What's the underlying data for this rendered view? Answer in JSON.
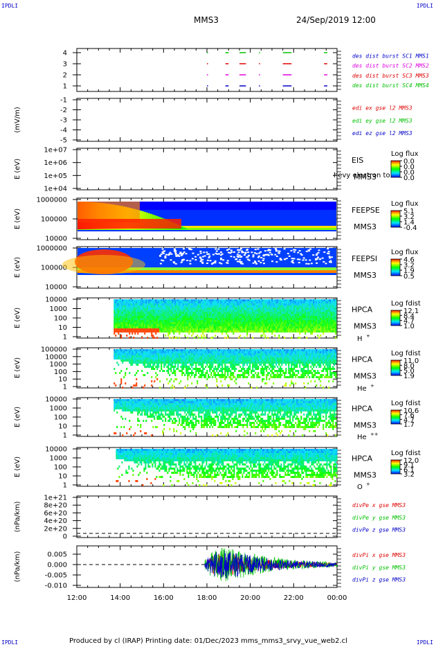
{
  "corners": {
    "tl": "IPDLI",
    "tr": "IPDLI",
    "bl": "IPDLI",
    "br": "IPDLI"
  },
  "header": {
    "mission": "MMS3",
    "datetime": "24/Sep/2019 12:00"
  },
  "footer": {
    "text": "Produced by cl (IRAP)   Printing date: 01/Dec/2023   mms_mms3_srvy_vue_web2.cl"
  },
  "time_axis": {
    "ticks": [
      "12:00",
      "14:00",
      "16:00",
      "18:00",
      "20:00",
      "22:00",
      "00:00"
    ]
  },
  "colors": {
    "red": "#e00000",
    "magenta": "#e000e0",
    "green": "#00c000",
    "blue": "#0000c8"
  },
  "chart_data": [
    {
      "type": "scatter",
      "panel": "burst",
      "ylabel": "",
      "yticks": [
        "4",
        "3",
        "2",
        "1"
      ],
      "legend": [
        {
          "label": "des dist burst SC1 MMS1",
          "color": "#0000c8"
        },
        {
          "label": "des dist burst SC2 MMS2",
          "color": "#e000e0"
        },
        {
          "label": "des dist burst SC3 MMS3",
          "color": "#e00000"
        },
        {
          "label": "des dist burst SC4 MMS4",
          "color": "#00c000"
        }
      ],
      "intervals_hours": [
        {
          "level": 4,
          "color": "#00c000",
          "ranges": [
            [
              18,
              18.05
            ],
            [
              18.85,
              19.0
            ],
            [
              19.5,
              19.8
            ],
            [
              20.4,
              20.45
            ],
            [
              21.5,
              21.9
            ],
            [
              23.4,
              23.55
            ]
          ]
        },
        {
          "level": 3,
          "color": "#e00000",
          "ranges": [
            [
              18,
              18.05
            ],
            [
              18.85,
              19.0
            ],
            [
              19.5,
              19.8
            ],
            [
              20.4,
              20.45
            ],
            [
              21.5,
              21.9
            ],
            [
              23.4,
              23.55
            ]
          ]
        },
        {
          "level": 2,
          "color": "#e000e0",
          "ranges": [
            [
              18,
              18.05
            ],
            [
              18.85,
              19.0
            ],
            [
              19.5,
              19.8
            ],
            [
              20.4,
              20.45
            ],
            [
              21.5,
              21.9
            ],
            [
              23.4,
              23.55
            ]
          ]
        },
        {
          "level": 1,
          "color": "#0000c8",
          "ranges": [
            [
              18,
              18.05
            ],
            [
              18.85,
              19.0
            ],
            [
              19.5,
              19.8
            ],
            [
              20.4,
              20.45
            ],
            [
              21.5,
              21.9
            ],
            [
              23.4,
              23.55
            ]
          ]
        }
      ]
    },
    {
      "type": "line",
      "panel": "edi",
      "ylabel": "(mV/m)",
      "yticks": [
        "-1",
        "-2",
        "-3",
        "-4",
        "-5"
      ],
      "legend": [
        {
          "label": "edi ex gse l2 MMS3",
          "color": "#e00000"
        },
        {
          "label": "edi ey gse l2 MMS3",
          "color": "#00c000"
        },
        {
          "label": "edi ez gse l2 MMS3",
          "color": "#0000c8"
        }
      ]
    },
    {
      "type": "heatmap",
      "panel": "eis",
      "ylabel": "E (eV)",
      "yticks": [
        "1e+07",
        "1e+06",
        "1e+05",
        "1e+04"
      ],
      "labels": [
        "EIS",
        "MMS3"
      ],
      "overlay": "hevy electron to",
      "colorbar": {
        "title": "Log flux",
        "ticks": [
          "0.0",
          "0.0",
          "0.0",
          "0.0"
        ]
      }
    },
    {
      "type": "heatmap",
      "panel": "feepse",
      "ylabel": "E (eV)",
      "yticks": [
        "1000000",
        "100000",
        "10000"
      ],
      "labels": [
        "FEEPSE",
        "MMS3"
      ],
      "colorbar": {
        "title": "Log flux",
        "ticks": [
          "5.1",
          "3.2",
          "1.4",
          "-0.4"
        ]
      }
    },
    {
      "type": "heatmap",
      "panel": "feepsi",
      "ylabel": "E (eV)",
      "yticks": [
        "1000000",
        "100000",
        "10000"
      ],
      "labels": [
        "FEEPSI",
        "MMS3"
      ],
      "colorbar": {
        "title": "Log flux",
        "ticks": [
          "4.6",
          "3.2",
          "1.9",
          "0.5"
        ]
      }
    },
    {
      "type": "heatmap",
      "panel": "hpca_h",
      "ylabel": "E (eV)",
      "yticks": [
        "10000",
        "1000",
        "100",
        "10",
        "1"
      ],
      "labels": [
        "HPCA",
        "MMS3"
      ],
      "species": "H",
      "charge": "+",
      "colorbar": {
        "title": "Log fdist",
        "ticks": [
          "12.1",
          "8.4",
          "4.7",
          "1.0"
        ]
      }
    },
    {
      "type": "heatmap",
      "panel": "hpca_he",
      "ylabel": "E (eV)",
      "yticks": [
        "100000",
        "10000",
        "1000",
        "100",
        "10",
        "1"
      ],
      "labels": [
        "HPCA",
        "MMS3"
      ],
      "species": "He",
      "charge": "+",
      "colorbar": {
        "title": "Log fdist",
        "ticks": [
          "11.0",
          "8.0",
          "5.0",
          "1.9"
        ]
      }
    },
    {
      "type": "heatmap",
      "panel": "hpca_hepp",
      "ylabel": "E (eV)",
      "yticks": [
        "10000",
        "1000",
        "100",
        "10",
        "1"
      ],
      "labels": [
        "HPCA",
        "MMS3"
      ],
      "species": "He",
      "charge": "++",
      "colorbar": {
        "title": "Log fdist",
        "ticks": [
          "10.6",
          "7.6",
          "4.7",
          "1.7"
        ]
      }
    },
    {
      "type": "heatmap",
      "panel": "hpca_o",
      "ylabel": "E (eV)",
      "yticks": [
        "10000",
        "1000",
        "100",
        "10",
        "1"
      ],
      "labels": [
        "HPCA",
        "MMS3"
      ],
      "species": "O",
      "charge": "+",
      "colorbar": {
        "title": "Log fdist",
        "ticks": [
          "12.0",
          "9.1",
          "6.1",
          "3.2"
        ]
      }
    },
    {
      "type": "line",
      "panel": "divpe",
      "ylabel": "(nPa/km)",
      "yticks": [
        "1e+21",
        "8e+20",
        "6e+20",
        "4e+20",
        "2e+20",
        "0"
      ],
      "legend": [
        {
          "label": "divPe x gse MMS3",
          "color": "#e00000"
        },
        {
          "label": "divPe y gse MMS3",
          "color": "#00c000"
        },
        {
          "label": "divPe z gse MMS3",
          "color": "#0000c8"
        }
      ]
    },
    {
      "type": "line",
      "panel": "divpi",
      "ylabel": "(nPa/km)",
      "yticks": [
        "0.005",
        "0.000",
        "-0.005",
        "-0.010"
      ],
      "ylim": [
        -0.011,
        0.009
      ],
      "legend": [
        {
          "label": "divPi x gse MMS3",
          "color": "#e00000"
        },
        {
          "label": "divPi y gse MMS3",
          "color": "#00c000"
        },
        {
          "label": "divPi z gse MMS3",
          "color": "#0000c8"
        }
      ],
      "envelope_hours": [
        [
          17.9,
          0.002
        ],
        [
          18.3,
          0.006
        ],
        [
          18.8,
          0.007
        ],
        [
          19.3,
          0.006
        ],
        [
          19.8,
          0.005
        ],
        [
          20.3,
          0.004
        ],
        [
          21.0,
          0.003
        ],
        [
          22.0,
          0.002
        ],
        [
          23.0,
          0.0015
        ],
        [
          24.0,
          0.001
        ]
      ]
    }
  ]
}
